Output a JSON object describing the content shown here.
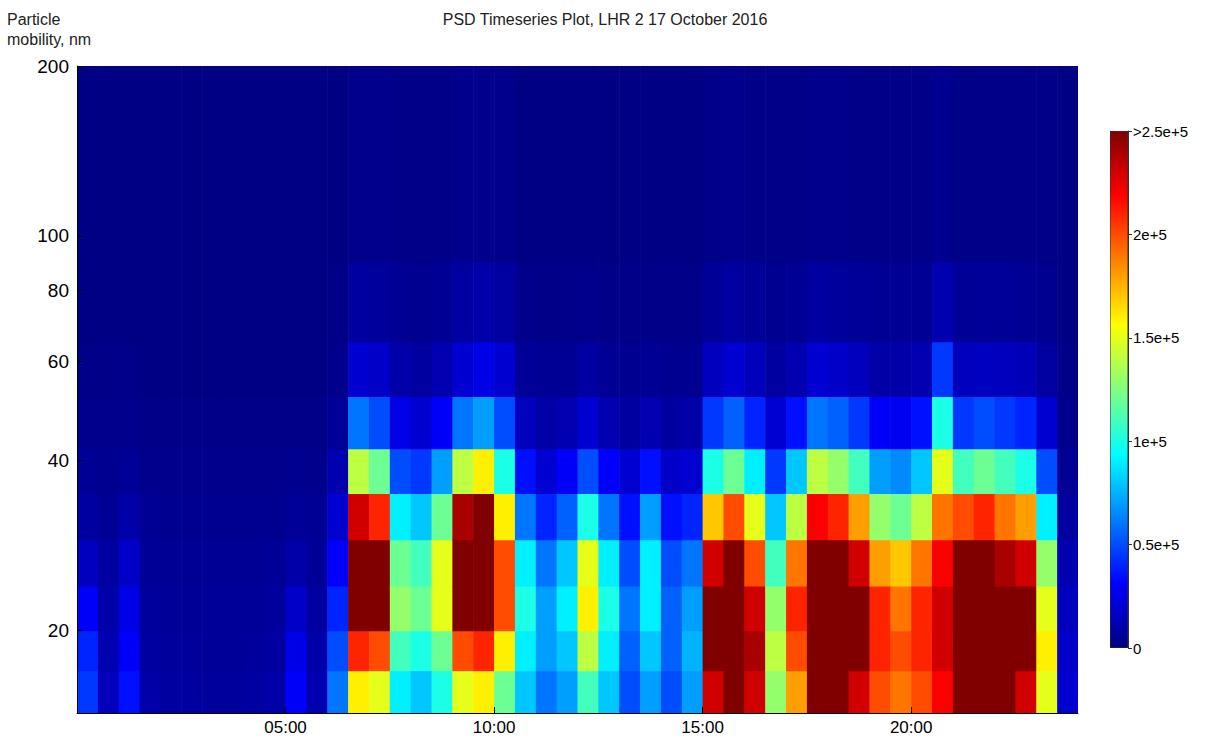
{
  "chart_data": {
    "type": "heatmap",
    "title": "PSD Timeseries Plot, LHR 2 17 October 2016",
    "y_label": "Particle mobility, nm",
    "log": "y",
    "grid": false,
    "xlim": [
      0,
      24
    ],
    "xticks": [
      {
        "value": 5,
        "label": "05:00"
      },
      {
        "value": 10,
        "label": "10:00"
      },
      {
        "value": 15,
        "label": "15:00"
      },
      {
        "value": 20,
        "label": "20:00"
      }
    ],
    "ylim": [
      14.3,
      200
    ],
    "yticks": [
      20,
      40,
      60,
      80,
      100,
      200
    ],
    "cells": {
      "x_edges": [
        0,
        0.5,
        1,
        1.5,
        2,
        2.5,
        3,
        3.5,
        4,
        4.5,
        5,
        5.5,
        6,
        6.5,
        7,
        7.5,
        8,
        8.5,
        9,
        9.5,
        10,
        10.5,
        11,
        11.5,
        12,
        12.5,
        13,
        13.5,
        14,
        14.5,
        15,
        15.5,
        16,
        16.5,
        17,
        17.5,
        18,
        18.5,
        19,
        19.5,
        20,
        20.5,
        21,
        21.5,
        22,
        22.5,
        23,
        23.5,
        24
      ],
      "y_edges": [
        14.3,
        17,
        20,
        24,
        29,
        35,
        42,
        52,
        65,
        90,
        200
      ],
      "values": [
        [
          45000,
          40000,
          30000,
          15000,
          8000,
          5000,
          3000,
          2000,
          1000,
          1000
        ],
        [
          15000,
          12000,
          10000,
          8000,
          5000,
          4000,
          3000,
          2000,
          1000,
          1000
        ],
        [
          35000,
          30000,
          25000,
          18000,
          10000,
          6000,
          3000,
          2000,
          1000,
          1000
        ],
        [
          10000,
          8000,
          7000,
          6000,
          5000,
          3000,
          2000,
          1000,
          1000,
          1000
        ],
        [
          8000,
          7000,
          6000,
          5000,
          4000,
          3000,
          2000,
          1000,
          1000,
          1000
        ],
        [
          8000,
          7000,
          6000,
          5000,
          4000,
          3000,
          2000,
          1000,
          1000,
          1000
        ],
        [
          7000,
          6000,
          6000,
          5000,
          4000,
          3000,
          2000,
          1000,
          1000,
          1000
        ],
        [
          7000,
          6000,
          6000,
          5000,
          4000,
          3000,
          2000,
          1000,
          1000,
          1000
        ],
        [
          8000,
          7000,
          6000,
          5000,
          4000,
          3000,
          2000,
          1000,
          1000,
          1000
        ],
        [
          10000,
          8000,
          7000,
          6000,
          4000,
          3000,
          2000,
          1000,
          1000,
          1000
        ],
        [
          30000,
          25000,
          18000,
          10000,
          6000,
          4000,
          2000,
          1000,
          1000,
          1000
        ],
        [
          12000,
          10000,
          8000,
          6000,
          5000,
          3000,
          2000,
          1000,
          1000,
          1000
        ],
        [
          60000,
          50000,
          40000,
          30000,
          20000,
          12000,
          6000,
          3000,
          2000,
          1000
        ],
        [
          160000,
          210000,
          260000,
          270000,
          230000,
          140000,
          60000,
          20000,
          8000,
          3000
        ],
        [
          150000,
          200000,
          260000,
          260000,
          210000,
          120000,
          50000,
          18000,
          7000,
          3000
        ],
        [
          90000,
          110000,
          130000,
          120000,
          90000,
          50000,
          25000,
          10000,
          5000,
          2000
        ],
        [
          80000,
          100000,
          120000,
          110000,
          80000,
          45000,
          20000,
          8000,
          4000,
          2000
        ],
        [
          100000,
          120000,
          150000,
          150000,
          120000,
          70000,
          30000,
          12000,
          5000,
          2000
        ],
        [
          150000,
          200000,
          260000,
          270000,
          240000,
          140000,
          60000,
          20000,
          8000,
          3000
        ],
        [
          160000,
          210000,
          270000,
          280000,
          250000,
          160000,
          70000,
          25000,
          10000,
          3000
        ],
        [
          120000,
          160000,
          200000,
          200000,
          160000,
          100000,
          50000,
          20000,
          8000,
          3000
        ],
        [
          80000,
          90000,
          100000,
          90000,
          60000,
          35000,
          15000,
          6000,
          3000,
          1000
        ],
        [
          60000,
          70000,
          70000,
          60000,
          40000,
          20000,
          10000,
          5000,
          2000,
          1000
        ],
        [
          70000,
          80000,
          90000,
          80000,
          55000,
          30000,
          12000,
          5000,
          2000,
          1000
        ],
        [
          110000,
          140000,
          160000,
          150000,
          100000,
          50000,
          20000,
          8000,
          3000,
          1000
        ],
        [
          80000,
          90000,
          100000,
          90000,
          60000,
          30000,
          12000,
          5000,
          2000,
          1000
        ],
        [
          50000,
          55000,
          60000,
          50000,
          35000,
          20000,
          8000,
          4000,
          2000,
          1000
        ],
        [
          70000,
          80000,
          90000,
          90000,
          70000,
          35000,
          12000,
          5000,
          2000,
          1000
        ],
        [
          50000,
          55000,
          55000,
          50000,
          35000,
          18000,
          8000,
          4000,
          2000,
          1000
        ],
        [
          70000,
          75000,
          70000,
          60000,
          40000,
          20000,
          10000,
          4000,
          2000,
          1000
        ],
        [
          230000,
          250000,
          250000,
          230000,
          170000,
          100000,
          45000,
          15000,
          6000,
          2000
        ],
        [
          260000,
          270000,
          270000,
          250000,
          200000,
          120000,
          55000,
          20000,
          8000,
          3000
        ],
        [
          230000,
          240000,
          230000,
          200000,
          150000,
          90000,
          40000,
          15000,
          6000,
          2000
        ],
        [
          130000,
          140000,
          130000,
          110000,
          80000,
          45000,
          20000,
          8000,
          4000,
          2000
        ],
        [
          180000,
          200000,
          210000,
          190000,
          140000,
          80000,
          35000,
          12000,
          5000,
          2000
        ],
        [
          250000,
          270000,
          280000,
          260000,
          220000,
          140000,
          60000,
          20000,
          8000,
          3000
        ],
        [
          260000,
          270000,
          270000,
          250000,
          210000,
          130000,
          55000,
          18000,
          7000,
          3000
        ],
        [
          230000,
          250000,
          250000,
          230000,
          180000,
          110000,
          45000,
          15000,
          6000,
          2000
        ],
        [
          200000,
          210000,
          210000,
          180000,
          130000,
          70000,
          30000,
          10000,
          5000,
          2000
        ],
        [
          190000,
          200000,
          190000,
          170000,
          120000,
          65000,
          28000,
          10000,
          5000,
          2000
        ],
        [
          200000,
          210000,
          210000,
          190000,
          140000,
          80000,
          35000,
          12000,
          5000,
          2000
        ],
        [
          220000,
          230000,
          230000,
          220000,
          190000,
          150000,
          100000,
          45000,
          12000,
          4000
        ],
        [
          260000,
          280000,
          280000,
          260000,
          200000,
          110000,
          45000,
          15000,
          6000,
          2000
        ],
        [
          260000,
          280000,
          280000,
          260000,
          210000,
          120000,
          50000,
          16000,
          6000,
          2000
        ],
        [
          250000,
          270000,
          260000,
          240000,
          190000,
          110000,
          45000,
          15000,
          6000,
          2000
        ],
        [
          230000,
          250000,
          250000,
          230000,
          180000,
          100000,
          40000,
          14000,
          5000,
          2000
        ],
        [
          150000,
          160000,
          150000,
          130000,
          90000,
          50000,
          20000,
          8000,
          4000,
          2000
        ],
        [
          20000,
          18000,
          15000,
          12000,
          8000,
          5000,
          3000,
          2000,
          1000,
          1000
        ]
      ]
    },
    "colorbar": {
      "range": [
        0,
        250000
      ],
      "ticks": [
        0,
        {
          "value": 50000,
          "label": "0.5e+5"
        },
        {
          "value": 100000,
          "label": "1e+5"
        },
        {
          "value": 150000,
          "label": "1.5e+5"
        },
        {
          "value": 200000,
          "label": "2e+5"
        },
        {
          "value": 250000,
          "label": ">2.5e+5"
        }
      ]
    }
  }
}
